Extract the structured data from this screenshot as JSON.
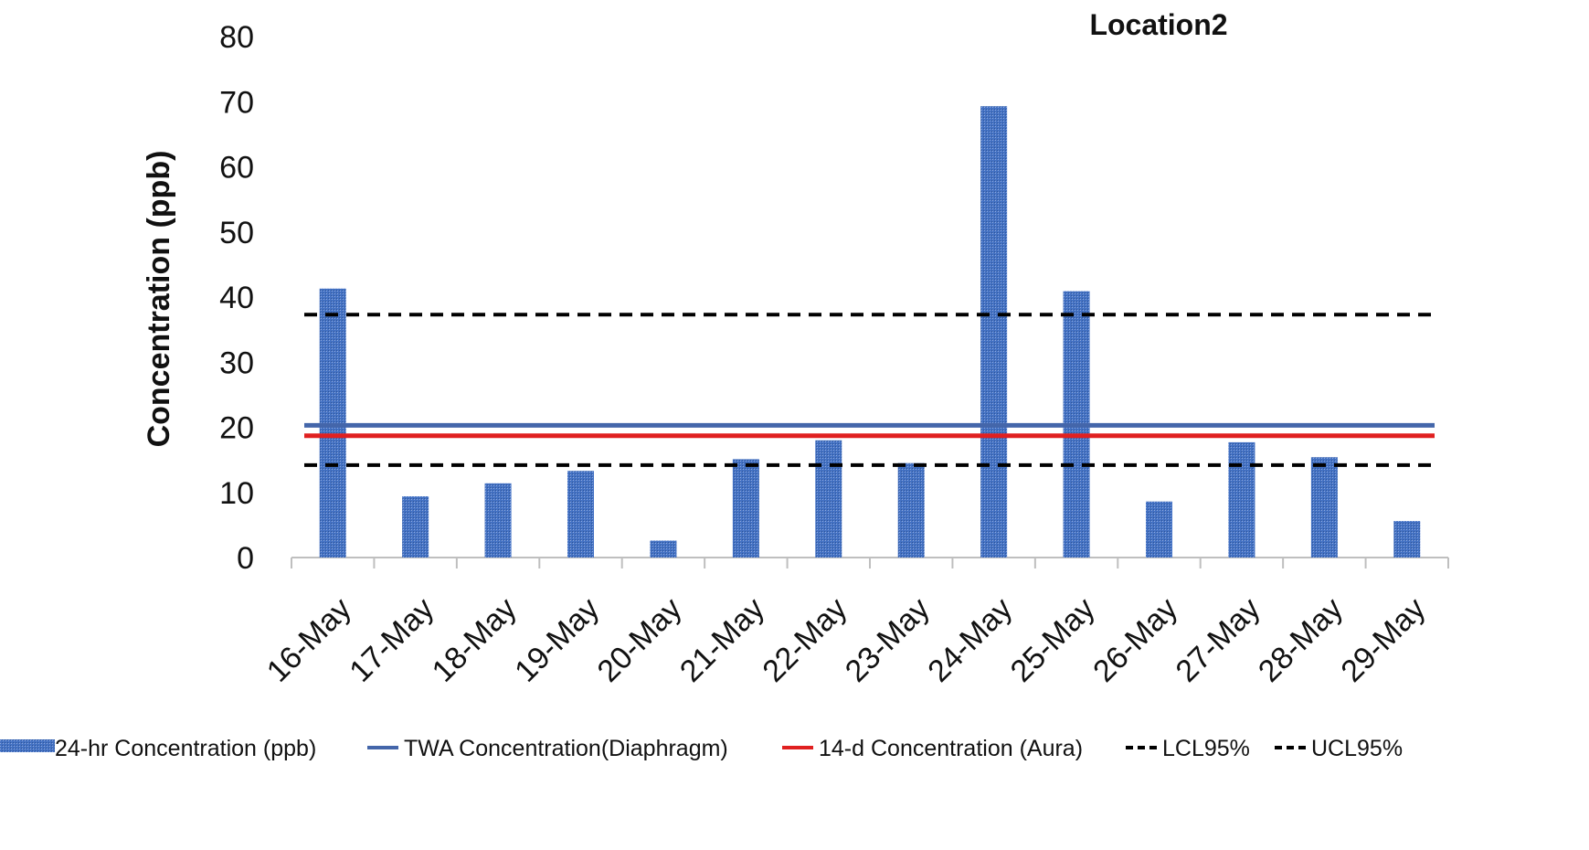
{
  "chart_data": {
    "type": "bar",
    "title": "Location2",
    "xlabel": "",
    "ylabel": "Concentration (ppb)",
    "ylim": [
      0,
      80
    ],
    "yticks": [
      0,
      10,
      20,
      30,
      40,
      50,
      60,
      70,
      80
    ],
    "grid": false,
    "legend_position": "bottom",
    "categories": [
      "16-May",
      "17-May",
      "18-May",
      "19-May",
      "20-May",
      "21-May",
      "22-May",
      "23-May",
      "24-May",
      "25-May",
      "26-May",
      "27-May",
      "28-May",
      "29-May"
    ],
    "series": [
      {
        "name": "24-hr Concentration (ppb)",
        "kind": "bar",
        "color": "#4472C4",
        "values": [
          41.3,
          9.4,
          11.4,
          13.3,
          2.6,
          15.1,
          18.0,
          14.5,
          69.3,
          40.9,
          8.6,
          17.7,
          15.4,
          5.6
        ]
      },
      {
        "name": "TWA Concentration(Diaphragm)",
        "kind": "line",
        "style": "solid",
        "color": "#4466AA",
        "value": 20.3
      },
      {
        "name": "14-d Concentration (Aura)",
        "kind": "line",
        "style": "solid",
        "color": "#E02020",
        "value": 18.7
      },
      {
        "name": "LCL95%",
        "kind": "line",
        "style": "dashed",
        "color": "#000000",
        "value": 14.2
      },
      {
        "name": "UCL95%",
        "kind": "line",
        "style": "dashed",
        "color": "#000000",
        "value": 37.3
      }
    ]
  }
}
